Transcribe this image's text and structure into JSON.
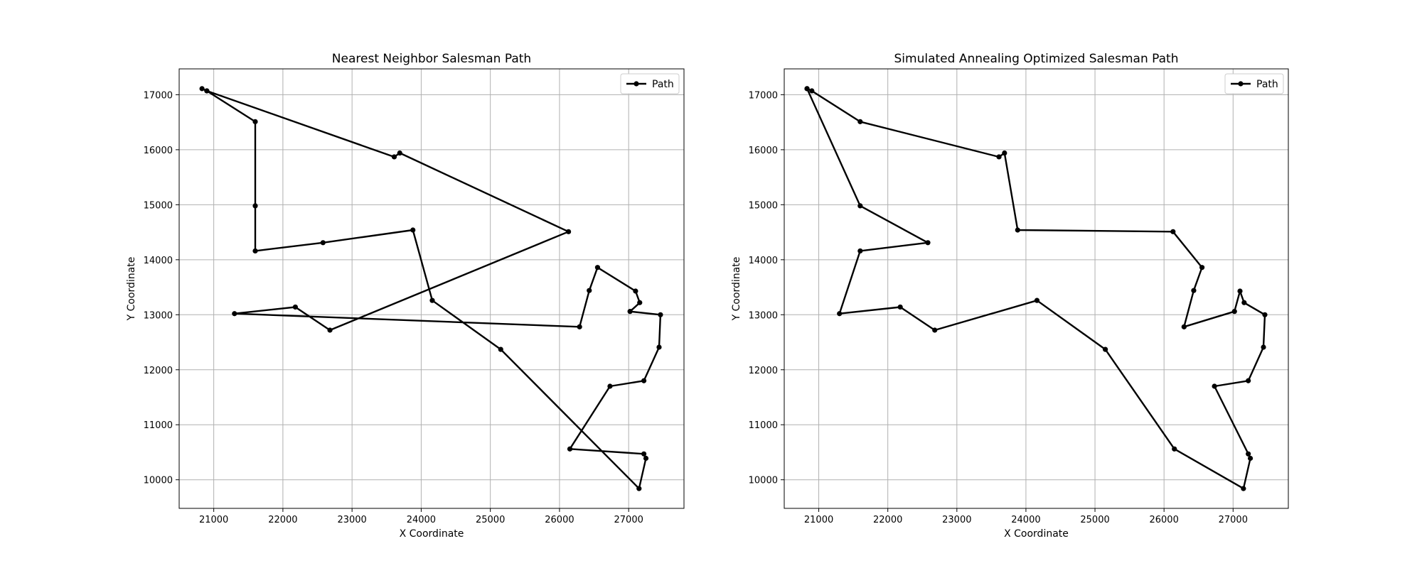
{
  "chart_data": [
    {
      "type": "line",
      "title": "Nearest Neighbor Salesman Path",
      "xlabel": "X Coordinate",
      "ylabel": "Y Coordinate",
      "xlim": [
        20500,
        27800
      ],
      "ylim": [
        9480,
        17470
      ],
      "xticks": [
        21000,
        22000,
        23000,
        24000,
        25000,
        26000,
        27000
      ],
      "yticks": [
        10000,
        11000,
        12000,
        13000,
        14000,
        15000,
        16000,
        17000
      ],
      "grid": true,
      "legend": {
        "position": "top-right"
      },
      "series": [
        {
          "name": "Path",
          "color": "#000000",
          "marker": "circle",
          "x": [
            20830,
            20900,
            21600,
            21600,
            21600,
            22580,
            23880,
            24160,
            25150,
            27150,
            27250,
            27220,
            26150,
            26730,
            27220,
            27440,
            27460,
            27020,
            27160,
            27100,
            26550,
            26430,
            26290,
            21300,
            22180,
            22680,
            26130,
            23690,
            23610,
            20900
          ],
          "y": [
            17110,
            17070,
            16510,
            14980,
            14160,
            14310,
            14540,
            13260,
            12370,
            9840,
            10390,
            10470,
            10560,
            11700,
            11800,
            12410,
            13000,
            13060,
            13220,
            13430,
            13860,
            13440,
            12780,
            13020,
            13140,
            12720,
            14510,
            15940,
            15870,
            17070
          ]
        }
      ]
    },
    {
      "type": "line",
      "title": "Simulated Annealing Optimized Salesman Path",
      "xlabel": "X Coordinate",
      "ylabel": "Y Coordinate",
      "xlim": [
        20500,
        27800
      ],
      "ylim": [
        9480,
        17470
      ],
      "xticks": [
        21000,
        22000,
        23000,
        24000,
        25000,
        26000,
        27000
      ],
      "yticks": [
        10000,
        11000,
        12000,
        13000,
        14000,
        15000,
        16000,
        17000
      ],
      "grid": true,
      "legend": {
        "position": "top-right"
      },
      "series": [
        {
          "name": "Path",
          "color": "#000000",
          "marker": "circle",
          "x": [
            20830,
            20900,
            21600,
            23610,
            23690,
            23880,
            26130,
            26550,
            26430,
            26290,
            27020,
            27100,
            27160,
            27460,
            27440,
            27220,
            26730,
            27220,
            27250,
            27150,
            26150,
            25150,
            24160,
            22680,
            22180,
            21300,
            21600,
            22580,
            21600,
            20830
          ],
          "y": [
            17110,
            17070,
            16510,
            15870,
            15940,
            14540,
            14510,
            13860,
            13440,
            12780,
            13060,
            13430,
            13220,
            13000,
            12410,
            11800,
            11700,
            10470,
            10390,
            9840,
            10560,
            12370,
            13260,
            12720,
            13140,
            13020,
            14160,
            14310,
            14980,
            17110
          ]
        }
      ]
    }
  ]
}
